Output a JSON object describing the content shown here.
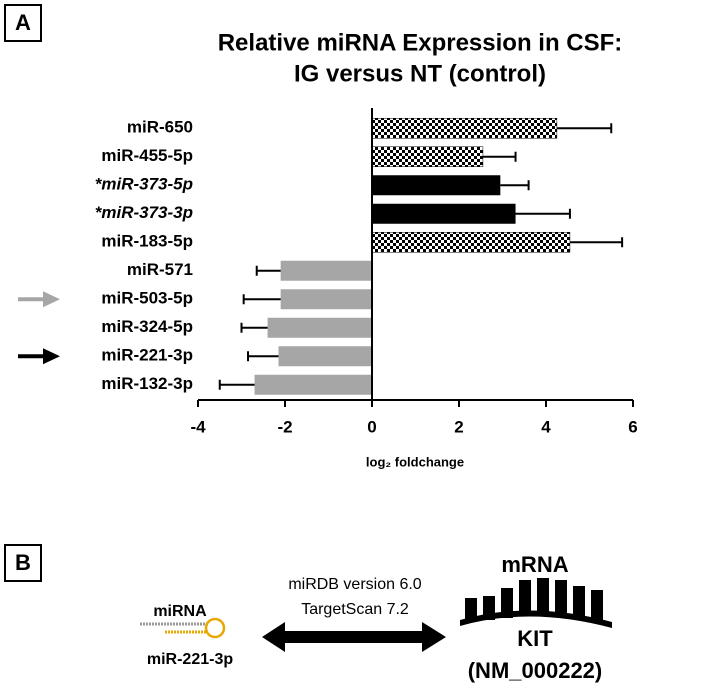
{
  "chart_data": {
    "type": "bar",
    "orientation": "horizontal",
    "panel": "A",
    "title": [
      "Relative miRNA Expression in CSF:",
      "IG versus NT (control)"
    ],
    "xlabel": "log₂ foldchange",
    "categories": [
      "miR-650",
      "miR-455-5p",
      "*miR-373-5p",
      "*miR-373-3p",
      "miR-183-5p",
      "miR-571",
      "miR-503-5p",
      "miR-324-5p",
      "miR-221-3p",
      "miR-132-3p"
    ],
    "values": [
      4.25,
      2.55,
      2.95,
      3.3,
      4.55,
      -2.1,
      -2.1,
      -2.4,
      -2.15,
      -2.7
    ],
    "errors": [
      1.25,
      0.75,
      0.65,
      1.25,
      1.2,
      0.55,
      0.85,
      0.6,
      0.7,
      0.8
    ],
    "bar_styles": [
      "checkered",
      "checkered",
      "#000000",
      "#000000",
      "checkered",
      "#a6a6a6",
      "#a6a6a6",
      "#a6a6a6",
      "#a6a6a6",
      "#a6a6a6"
    ],
    "row_arrows": [
      {
        "index": 6,
        "color": "#a6a6a6"
      },
      {
        "index": 8,
        "color": "#000000"
      }
    ],
    "xlim": [
      -4,
      6
    ],
    "xticks": [
      -4,
      -2,
      0,
      2,
      4,
      6
    ]
  },
  "panel_b": {
    "label": "B",
    "mirna_label": "miRNA",
    "mirna_name": "miR-221-3p",
    "databases": [
      "miRDB version 6.0",
      "TargetScan 7.2"
    ],
    "mrna_label": "mRNA",
    "gene": "KIT",
    "accession": "(NM_000222)"
  }
}
